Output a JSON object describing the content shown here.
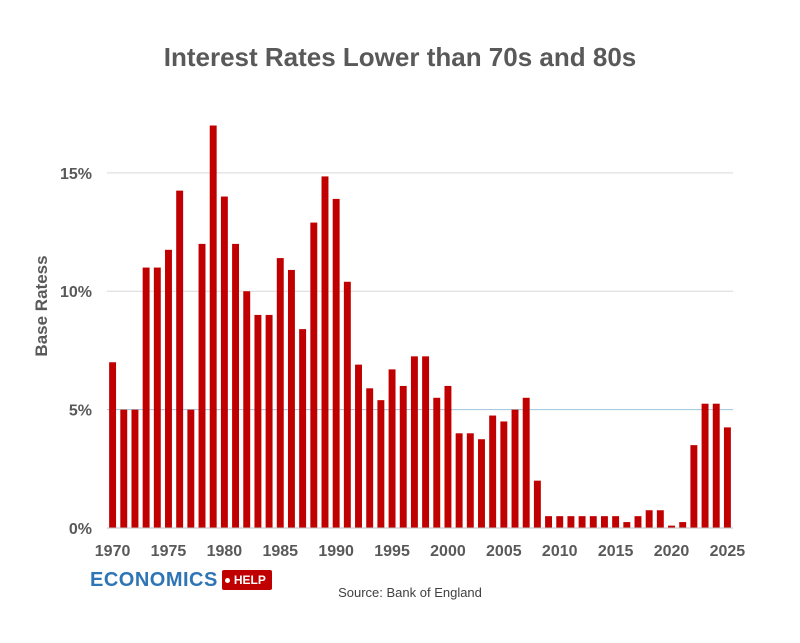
{
  "chart_data": {
    "type": "bar",
    "title": "Interest Rates Lower than 70s and 80s",
    "xlabel": "",
    "ylabel": "Base Ratess",
    "ylim": [
      0,
      18.5
    ],
    "yticks": [
      0,
      5,
      10,
      15
    ],
    "ytick_labels": [
      "0%",
      "5%",
      "10%",
      "15%"
    ],
    "xtick_labels": [
      "1970",
      "1975",
      "1980",
      "1985",
      "1990",
      "1995",
      "2000",
      "2005",
      "2010",
      "2015",
      "2020",
      "2025"
    ],
    "x": [
      1970,
      1971,
      1972,
      1973,
      1974,
      1975,
      1976,
      1977,
      1978,
      1979,
      1980,
      1981,
      1982,
      1983,
      1984,
      1985,
      1986,
      1987,
      1988,
      1989,
      1990,
      1991,
      1992,
      1993,
      1994,
      1995,
      1996,
      1997,
      1998,
      1999,
      2000,
      2001,
      2002,
      2003,
      2004,
      2005,
      2006,
      2007,
      2008,
      2009,
      2010,
      2011,
      2012,
      2013,
      2014,
      2015,
      2016,
      2017,
      2018,
      2019,
      2020,
      2021,
      2022,
      2023,
      2024,
      2025
    ],
    "values": [
      7,
      5,
      5,
      11,
      11,
      11.75,
      14.25,
      5,
      12,
      17,
      14,
      12,
      10,
      9,
      9,
      11.4,
      10.9,
      8.4,
      12.9,
      14.85,
      13.9,
      10.4,
      6.9,
      5.9,
      5.4,
      6.7,
      6,
      7.25,
      7.25,
      5.5,
      6,
      4,
      4,
      3.75,
      4.75,
      4.5,
      5,
      5.5,
      2,
      0.5,
      0.5,
      0.5,
      0.5,
      0.5,
      0.5,
      0.5,
      0.25,
      0.5,
      0.75,
      0.75,
      0.1,
      0.25,
      3.5,
      5.25,
      5.25,
      4.25
    ],
    "grid": true,
    "bar_color": "#c00000",
    "grid_color": "#d9d9d9",
    "highlight_line": {
      "y": 5,
      "color": "#9ec3dc"
    }
  },
  "footer": {
    "logo_main": "ECONOMICS",
    "logo_tag": "HELP",
    "source": "Source: Bank of England"
  },
  "colors": {
    "brand_blue": "#2e75b6",
    "brand_red": "#c00000"
  }
}
